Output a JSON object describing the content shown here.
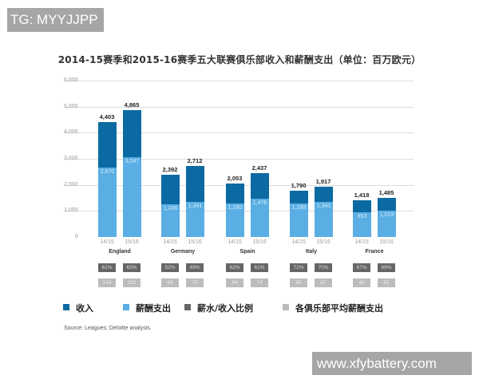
{
  "watermarks": {
    "top": "TG: MYYJJPP",
    "bottom": "www.xfybattery.com"
  },
  "chart_data": {
    "type": "bar",
    "title": "2014-15赛季和2015-16赛季五大联赛俱乐部收入和薪酬支出（单位：百万欧元）",
    "xlabel": "",
    "ylabel": "",
    "ylim": [
      0,
      6000
    ],
    "yticks": [
      "0",
      "1,000",
      "2,000",
      "3,000",
      "4,000",
      "5,000",
      "6,000"
    ],
    "grid": true,
    "legend_position": "bottom",
    "categories": [
      "England",
      "Germany",
      "Spain",
      "Italy",
      "France"
    ],
    "seasons": [
      "14/15",
      "15/16"
    ],
    "groups": [
      {
        "country": "England",
        "bars": [
          {
            "season": "14/15",
            "revenue": 4403,
            "revenue_label": "4,403",
            "wages": 2670,
            "wages_label": "2,670",
            "ratio": "61%",
            "avg": "134"
          },
          {
            "season": "15/16",
            "revenue": 4865,
            "revenue_label": "4,865",
            "wages": 3047,
            "wages_label": "3,047",
            "ratio": "63%",
            "avg": "152"
          }
        ]
      },
      {
        "country": "Germany",
        "bars": [
          {
            "season": "14/15",
            "revenue": 2392,
            "revenue_label": "2,392",
            "wages": 1246,
            "wages_label": "1,246",
            "ratio": "52%",
            "avg": "69"
          },
          {
            "season": "15/16",
            "revenue": 2712,
            "revenue_label": "2,712",
            "wages": 1341,
            "wages_label": "1,341",
            "ratio": "49%",
            "avg": "75"
          }
        ]
      },
      {
        "country": "Spain",
        "bars": [
          {
            "season": "14/15",
            "revenue": 2053,
            "revenue_label": "2,053",
            "wages": 1280,
            "wages_label": "1,280",
            "ratio": "62%",
            "avg": "64"
          },
          {
            "season": "15/16",
            "revenue": 2437,
            "revenue_label": "2,437",
            "wages": 1476,
            "wages_label": "1,476",
            "ratio": "61%",
            "avg": "74"
          }
        ]
      },
      {
        "country": "Italy",
        "bars": [
          {
            "season": "14/15",
            "revenue": 1790,
            "revenue_label": "1,790",
            "wages": 1298,
            "wages_label": "1,298",
            "ratio": "72%",
            "avg": "65"
          },
          {
            "season": "15/16",
            "revenue": 1917,
            "revenue_label": "1,917",
            "wages": 1341,
            "wages_label": "1,341",
            "ratio": "70%",
            "avg": "67"
          }
        ]
      },
      {
        "country": "France",
        "bars": [
          {
            "season": "14/15",
            "revenue": 1418,
            "revenue_label": "1,418",
            "wages": 953,
            "wages_label": "953",
            "ratio": "67%",
            "avg": "48"
          },
          {
            "season": "15/16",
            "revenue": 1485,
            "revenue_label": "1,485",
            "wages": 1019,
            "wages_label": "1,019",
            "ratio": "69%",
            "avg": "51"
          }
        ]
      }
    ],
    "series": [
      {
        "name": "收入",
        "color": "#0b6aa2",
        "values": [
          4403,
          4865,
          2392,
          2712,
          2053,
          2437,
          1790,
          1917,
          1418,
          1485
        ]
      },
      {
        "name": "薪酬支出",
        "color": "#5aaee3",
        "values": [
          2670,
          3047,
          1246,
          1341,
          1280,
          1476,
          1298,
          1341,
          953,
          1019
        ]
      },
      {
        "name": "薪水/收入比例",
        "color": "#666666",
        "values": [
          "61%",
          "63%",
          "52%",
          "49%",
          "62%",
          "61%",
          "72%",
          "70%",
          "67%",
          "69%"
        ]
      },
      {
        "name": "各俱乐部平均薪酬支出",
        "color": "#bcbcbc",
        "values": [
          134,
          152,
          69,
          75,
          64,
          74,
          65,
          67,
          48,
          51
        ]
      }
    ],
    "legend": [
      {
        "label": "收入",
        "color": "#0b6aa2"
      },
      {
        "label": "薪酬支出",
        "color": "#5aaee3"
      },
      {
        "label": "薪水/收入比例",
        "color": "#666666"
      },
      {
        "label": "各俱乐部平均薪酬支出",
        "color": "#bcbcbc"
      }
    ],
    "source": "Source: Leagues; Deloitte analysis."
  }
}
